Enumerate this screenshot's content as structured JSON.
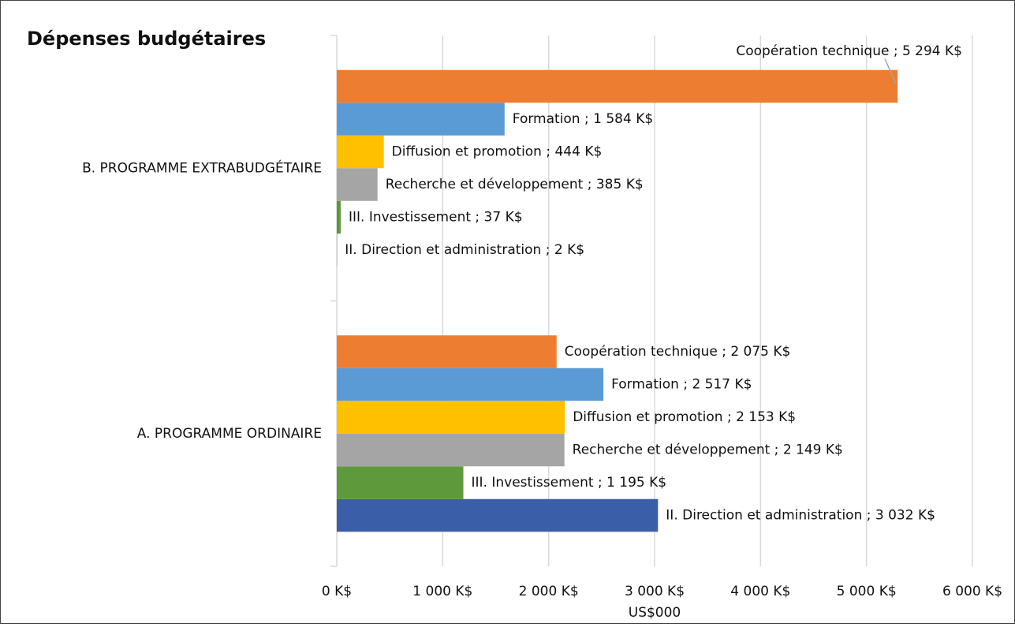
{
  "chart_data": {
    "type": "hbar",
    "title": "Dépenses budgétaires",
    "x_label": "US$000",
    "categories": [
      "A. PROGRAMME ORDINAIRE",
      "B. PROGRAMME EXTRABUDGÉTAIRE"
    ],
    "series": [
      {
        "name": "II. Direction et administration",
        "color": "#3a5fa8",
        "values": [
          3032,
          2
        ],
        "value_labels": [
          "II. Direction et administration ; 3 032 K$",
          "II. Direction et administration ; 2 K$"
        ]
      },
      {
        "name": "III. Investissement",
        "color": "#5e9a3c",
        "values": [
          1195,
          37
        ],
        "value_labels": [
          "III. Investissement ; 1 195 K$",
          "III. Investissement ; 37 K$"
        ]
      },
      {
        "name": "Recherche et développement",
        "color": "#a5a5a5",
        "values": [
          2149,
          385
        ],
        "value_labels": [
          "Recherche et développement ; 2 149 K$",
          "Recherche et développement ; 385 K$"
        ]
      },
      {
        "name": "Diffusion et promotion",
        "color": "#ffc000",
        "values": [
          2153,
          444
        ],
        "value_labels": [
          "Diffusion et promotion ; 2 153 K$",
          "Diffusion et promotion ; 444 K$"
        ]
      },
      {
        "name": "Formation",
        "color": "#5b9bd5",
        "values": [
          2517,
          1584
        ],
        "value_labels": [
          "Formation ; 2 517 K$",
          "Formation ; 1 584 K$"
        ]
      },
      {
        "name": "Coopération technique",
        "color": "#ed7d31",
        "values": [
          2075,
          5294
        ],
        "value_labels": [
          "Coopération technique ; 2 075 K$",
          "Coopération technique ; 5 294 K$"
        ]
      }
    ],
    "xlim": [
      0,
      6000
    ],
    "xticks": [
      {
        "value": 0,
        "label": "0 K$"
      },
      {
        "value": 1000,
        "label": "1 000 K$"
      },
      {
        "value": 2000,
        "label": "2 000 K$"
      },
      {
        "value": 3000,
        "label": "3 000 K$"
      },
      {
        "value": 4000,
        "label": "4 000 K$"
      },
      {
        "value": 5000,
        "label": "5 000 K$"
      },
      {
        "value": 6000,
        "label": "6 000 K$"
      }
    ],
    "grid": true
  }
}
